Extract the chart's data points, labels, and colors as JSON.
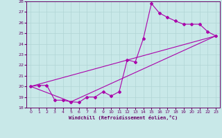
{
  "xlabel": "Windchill (Refroidissement éolien,°C)",
  "background_color": "#c8e8e8",
  "grid_color": "#b0d4d4",
  "line_color": "#aa00aa",
  "xlim": [
    -0.5,
    23.5
  ],
  "ylim": [
    18,
    28
  ],
  "xticks": [
    0,
    1,
    2,
    3,
    4,
    5,
    6,
    7,
    8,
    9,
    10,
    11,
    12,
    13,
    14,
    15,
    16,
    17,
    18,
    19,
    20,
    21,
    22,
    23
  ],
  "yticks": [
    18,
    19,
    20,
    21,
    22,
    23,
    24,
    25,
    26,
    27,
    28
  ],
  "curve_x": [
    0,
    1,
    2,
    3,
    4,
    5,
    6,
    7,
    8,
    9,
    10,
    11,
    12,
    13,
    14,
    15,
    16,
    17,
    18,
    19,
    20,
    21,
    22,
    23
  ],
  "curve_y": [
    20.0,
    20.1,
    20.1,
    18.7,
    18.7,
    18.55,
    18.5,
    19.0,
    19.0,
    19.5,
    19.1,
    19.5,
    22.5,
    22.3,
    24.5,
    27.8,
    26.9,
    26.5,
    26.15,
    25.85,
    25.85,
    25.85,
    25.15,
    24.75
  ],
  "line1_x": [
    0,
    23
  ],
  "line1_y": [
    20.0,
    24.75
  ],
  "line2_x": [
    0,
    5,
    23
  ],
  "line2_y": [
    20.0,
    18.55,
    24.75
  ]
}
